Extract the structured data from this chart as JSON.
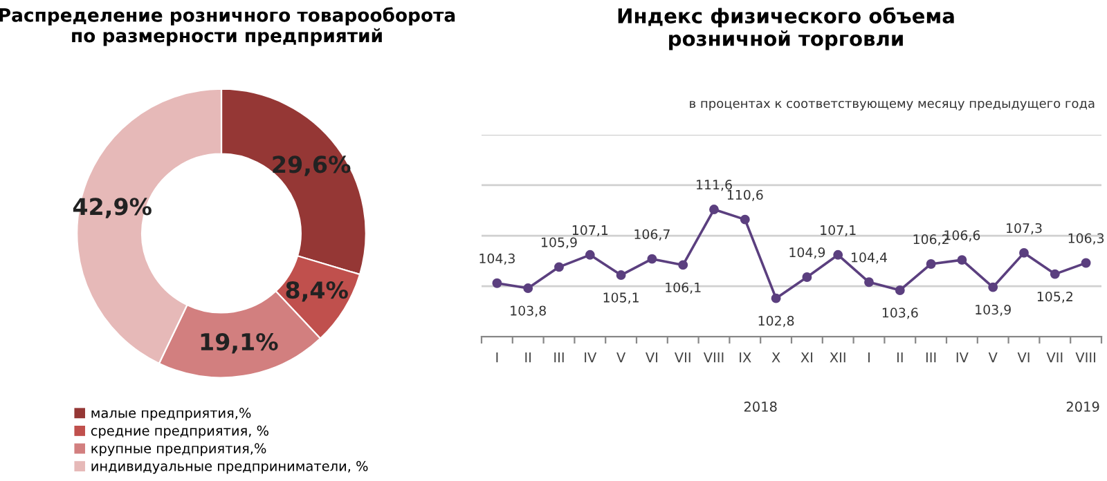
{
  "chart_data": [
    {
      "type": "donut",
      "title": "Распределение розничного товарооборота\nпо размерности предприятий",
      "categories": [
        "малые предприятия,%",
        "средние предприятия, %",
        "крупные предприятия,%",
        "индивидуальные предприниматели, %"
      ],
      "values": [
        29.6,
        8.4,
        19.1,
        42.9
      ],
      "colors": [
        "#953735",
        "#c0504d",
        "#d27f7f",
        "#e6b9b8"
      ],
      "value_labels": [
        "29,6%",
        "8,4%",
        "19,1%",
        "42,9%"
      ],
      "legend": "bottom"
    },
    {
      "type": "line",
      "title": "Индекс физического объема\nрозничной торговли",
      "subtitle": "в процентах к соответствующему месяцу предыдущего года",
      "categories": [
        "I",
        "II",
        "III",
        "IV",
        "V",
        "VI",
        "VII",
        "VIII",
        "IX",
        "X",
        "XI",
        "XII",
        "I",
        "II",
        "III",
        "IV",
        "V",
        "VI",
        "VII",
        "VIII"
      ],
      "series": [
        {
          "color": "#5b3f7f",
          "values": [
            104.3,
            103.8,
            105.9,
            107.1,
            105.1,
            106.7,
            106.1,
            111.6,
            110.6,
            102.8,
            104.9,
            107.1,
            104.4,
            103.6,
            106.2,
            106.6,
            103.9,
            107.3,
            105.2,
            106.3
          ],
          "value_labels": [
            "104,3",
            "103,8",
            "105,9",
            "107,1",
            "105,1",
            "106,7",
            "106,1",
            "111,6",
            "110,6",
            "102,8",
            "104,9",
            "107,1",
            "104,4",
            "103,6",
            "106,2",
            "106,6",
            "103,9",
            "107,3",
            "105,2",
            "106,3"
          ]
        }
      ],
      "ylim": [
        99,
        119
      ],
      "yticks": [
        {
          "value": 104,
          "label": null
        },
        {
          "value": 109,
          "label": null
        },
        {
          "value": 114,
          "label": null
        },
        {
          "value": 119,
          "label": null
        }
      ],
      "grid": "y",
      "tick_labels": "x",
      "marker": "circle",
      "line_style": "solid",
      "annotations": [
        "2018",
        "2019"
      ]
    }
  ]
}
